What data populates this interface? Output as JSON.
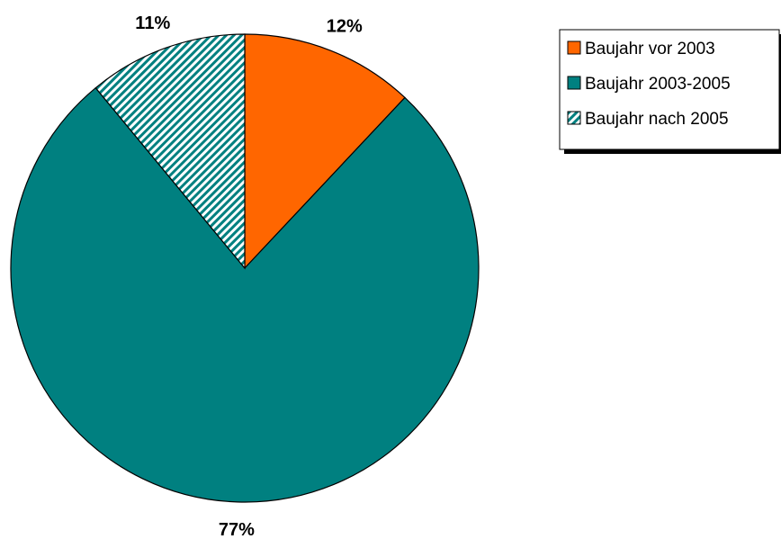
{
  "chart_data": {
    "type": "pie",
    "title": "",
    "slices": [
      {
        "label": "Baujahr vor 2003",
        "value": 12,
        "display": "12%",
        "color": "#ff6600",
        "pattern": "solid"
      },
      {
        "label": "Baujahr 2003-2005",
        "value": 77,
        "display": "77%",
        "color": "#008080",
        "pattern": "solid"
      },
      {
        "label": "Baujahr nach 2005",
        "value": 11,
        "display": "11%",
        "color": "#008080",
        "pattern": "diagonal-hatch"
      }
    ],
    "start_angle": "12 o'clock",
    "direction": "clockwise",
    "legend_position": "top-right"
  }
}
